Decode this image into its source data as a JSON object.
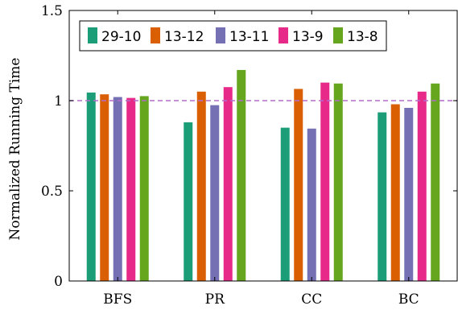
{
  "chart_data": {
    "type": "bar",
    "title": "",
    "xlabel": "",
    "ylabel": "Normalized Running Time",
    "categories": [
      "BFS",
      "PR",
      "CC",
      "BC"
    ],
    "ylim": [
      0,
      1.5
    ],
    "yticks": [
      {
        "value": 0,
        "label": "0"
      },
      {
        "value": 0.5,
        "label": "0.5"
      },
      {
        "value": 1,
        "label": "1"
      },
      {
        "value": 1.5,
        "label": "1.5"
      }
    ],
    "reference_line": {
      "value": 1.0,
      "color": "#b36bc9",
      "style": "dashed"
    },
    "grid": false,
    "legend_position": "top-left",
    "series": [
      {
        "name": "29-10",
        "color": "#1b9e77",
        "values": [
          1.045,
          0.88,
          0.85,
          0.935
        ]
      },
      {
        "name": "13-12",
        "color": "#d95f02",
        "values": [
          1.035,
          1.05,
          1.065,
          0.98
        ]
      },
      {
        "name": "13-11",
        "color": "#7570b3",
        "values": [
          1.02,
          0.975,
          0.845,
          0.96
        ]
      },
      {
        "name": "13-9",
        "color": "#e7298a",
        "values": [
          1.015,
          1.075,
          1.1,
          1.05
        ]
      },
      {
        "name": "13-8",
        "color": "#66a61e",
        "values": [
          1.025,
          1.17,
          1.095,
          1.095
        ]
      }
    ]
  }
}
